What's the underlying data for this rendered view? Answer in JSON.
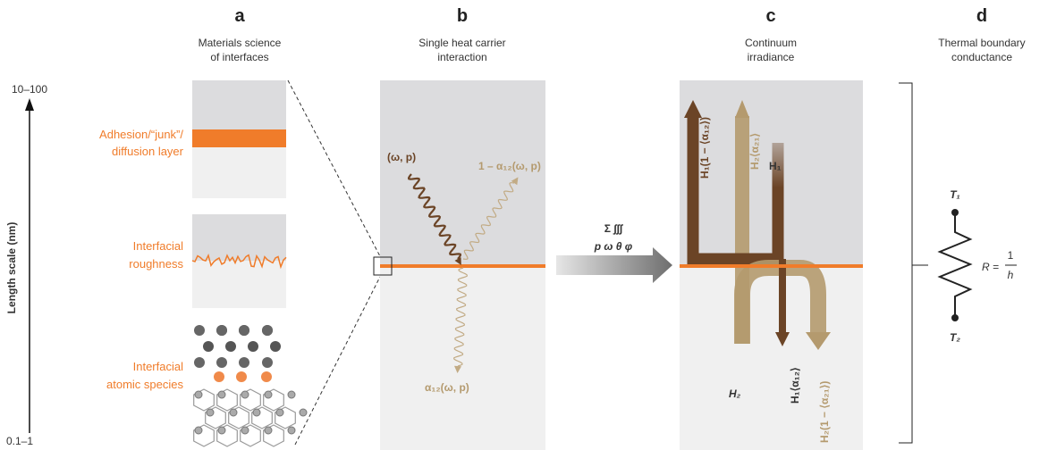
{
  "axis": {
    "label": "Length scale (nm)",
    "top": "10–100",
    "bottom": "0.1–1"
  },
  "panels": [
    {
      "letter": "a",
      "title": [
        "Materials science",
        "of interfaces"
      ]
    },
    {
      "letter": "b",
      "title": [
        "Single heat carrier",
        "interaction"
      ]
    },
    {
      "letter": "c",
      "title": [
        "Continuum",
        "irradiance"
      ]
    },
    {
      "letter": "d",
      "title": [
        "Thermal boundary",
        "conductance"
      ]
    }
  ],
  "panel_a": {
    "labels": [
      [
        "Adhesion/“junk”/",
        "diffusion layer"
      ],
      [
        "Interfacial",
        "roughness"
      ],
      [
        "Interfacial",
        "atomic species"
      ]
    ]
  },
  "panel_b": {
    "incident": "(ω, p)",
    "reflected": "1 – α₁₂(ω, p)",
    "transmitted": "α₁₂(ω, p)"
  },
  "summation": {
    "operator": "Σ ∫∫∫",
    "variables": "p  ω  θ  φ"
  },
  "panel_c": {
    "reflected_h1": "H₁(1 − ⟨α₁₂⟩)",
    "transmitted_h2": "H₂⟨α₂₁⟩",
    "incident_h1": "H₁",
    "incident_h2": "H₂",
    "transmitted_h1": "H₁⟨α₁₂⟩",
    "reflected_h2": "H₂(1 − ⟨α₂₁⟩)"
  },
  "panel_d": {
    "top": "T₁",
    "bottom": "T₂",
    "resistance": "R =",
    "numerator": "1",
    "denominator": "h"
  }
}
